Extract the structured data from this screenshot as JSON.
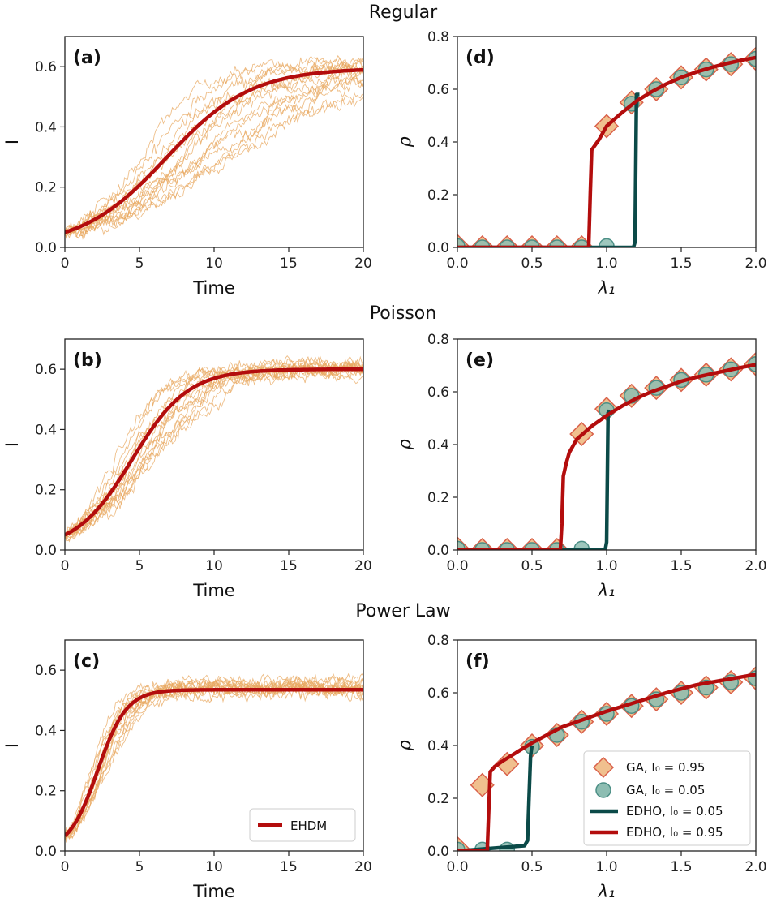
{
  "chart_data": [
    {
      "id": "a",
      "type": "line",
      "row_title": "Regular",
      "panel_label": "(a)",
      "xlabel": "Time",
      "ylabel": "I",
      "xlim": [
        0,
        20
      ],
      "ylim": [
        0,
        0.7
      ],
      "xticks": [
        0,
        5,
        10,
        15,
        20
      ],
      "xtick_labels": [
        "0",
        "5",
        "10",
        "15",
        "20"
      ],
      "yticks": [
        0,
        0.2,
        0.4,
        0.6
      ],
      "ytick_labels": [
        "0.0",
        "0.2",
        "0.4",
        "0.6"
      ],
      "ehdm": {
        "name": "EHDM",
        "I0": 0.05,
        "Imax": 0.595,
        "k": 0.45,
        "t0": 6.8
      },
      "stochastic": {
        "count": 15,
        "t0_min": 5.0,
        "t0_max": 11.5,
        "Imax": 0.6,
        "k": 0.55,
        "noise": 0.02
      }
    },
    {
      "id": "b",
      "type": "line",
      "row_title": "Poisson",
      "panel_label": "(b)",
      "xlabel": "Time",
      "ylabel": "I",
      "xlim": [
        0,
        20
      ],
      "ylim": [
        0,
        0.7
      ],
      "xticks": [
        0,
        5,
        10,
        15,
        20
      ],
      "xtick_labels": [
        "0",
        "5",
        "10",
        "15",
        "20"
      ],
      "yticks": [
        0,
        0.2,
        0.4,
        0.6
      ],
      "ytick_labels": [
        "0.0",
        "0.2",
        "0.4",
        "0.6"
      ],
      "ehdm": {
        "name": "EHDM",
        "I0": 0.05,
        "Imax": 0.6,
        "k": 0.8,
        "t0": 4.5
      },
      "stochastic": {
        "count": 15,
        "t0_min": 3.6,
        "t0_max": 6.2,
        "Imax": 0.605,
        "k": 0.85,
        "noise": 0.02
      }
    },
    {
      "id": "c",
      "type": "line",
      "row_title": "Power Law",
      "panel_label": "(c)",
      "xlabel": "Time",
      "ylabel": "I",
      "xlim": [
        0,
        20
      ],
      "ylim": [
        0,
        0.7
      ],
      "xticks": [
        0,
        5,
        10,
        15,
        20
      ],
      "xtick_labels": [
        "0",
        "5",
        "10",
        "15",
        "20"
      ],
      "yticks": [
        0,
        0.2,
        0.4,
        0.6
      ],
      "ytick_labels": [
        "0.0",
        "0.2",
        "0.4",
        "0.6"
      ],
      "ehdm": {
        "name": "EHDM",
        "I0": 0.05,
        "Imax": 0.535,
        "k": 1.15,
        "t0": 2.2
      },
      "stochastic": {
        "count": 15,
        "t0_min": 1.8,
        "t0_max": 2.9,
        "Imax": 0.54,
        "k": 1.2,
        "noise": 0.02
      },
      "legend": {
        "position": "lower right",
        "entries": [
          "EHDM"
        ]
      }
    },
    {
      "id": "d",
      "type": "line+scatter",
      "panel_label": "(d)",
      "xlabel": "λ₁",
      "ylabel": "ρ",
      "xlim": [
        0,
        2
      ],
      "ylim": [
        0,
        0.8
      ],
      "xticks": [
        0,
        0.5,
        1.0,
        1.5,
        2.0
      ],
      "xtick_labels": [
        "0.0",
        "0.5",
        "1.0",
        "1.5",
        "2.0"
      ],
      "yticks": [
        0,
        0.2,
        0.4,
        0.6,
        0.8
      ],
      "ytick_labels": [
        "0.0",
        "0.2",
        "0.4",
        "0.6",
        "0.8"
      ],
      "ga_high": {
        "x": [
          0,
          0.167,
          0.333,
          0.5,
          0.667,
          0.833,
          1.0,
          1.167,
          1.333,
          1.5,
          1.667,
          1.833,
          2.0
        ],
        "y": [
          0.005,
          0,
          0,
          0,
          0,
          0,
          0.46,
          0.55,
          0.6,
          0.645,
          0.675,
          0.695,
          0.715
        ]
      },
      "ga_low": {
        "x": [
          0,
          0.167,
          0.333,
          0.5,
          0.667,
          0.833,
          1.0,
          1.167,
          1.333,
          1.5,
          1.667,
          1.833,
          2.0
        ],
        "y": [
          0.005,
          0,
          0,
          0,
          0,
          0,
          0.005,
          0.545,
          0.6,
          0.645,
          0.675,
          0.695,
          0.715
        ]
      },
      "edho_low": {
        "x": [
          0,
          1.18,
          1.19,
          1.2,
          1.21,
          1.22
        ],
        "y": [
          0,
          0,
          0.02,
          0.58,
          0.58,
          0.58
        ]
      },
      "edho_high": {
        "x": [
          0,
          0.88,
          0.89,
          0.9,
          0.95,
          1.0,
          1.1,
          1.2,
          1.3,
          1.4,
          1.5,
          1.6,
          1.7,
          1.8,
          1.9,
          2.0
        ],
        "y": [
          0,
          0,
          0.2,
          0.37,
          0.41,
          0.46,
          0.51,
          0.555,
          0.59,
          0.62,
          0.645,
          0.665,
          0.682,
          0.697,
          0.71,
          0.72
        ]
      }
    },
    {
      "id": "e",
      "type": "line+scatter",
      "panel_label": "(e)",
      "xlabel": "λ₁",
      "ylabel": "ρ",
      "xlim": [
        0,
        2
      ],
      "ylim": [
        0,
        0.8
      ],
      "xticks": [
        0,
        0.5,
        1.0,
        1.5,
        2.0
      ],
      "xtick_labels": [
        "0.0",
        "0.5",
        "1.0",
        "1.5",
        "2.0"
      ],
      "yticks": [
        0,
        0.2,
        0.4,
        0.6,
        0.8
      ],
      "ytick_labels": [
        "0.0",
        "0.2",
        "0.4",
        "0.6",
        "0.8"
      ],
      "ga_high": {
        "x": [
          0,
          0.167,
          0.333,
          0.5,
          0.667,
          0.833,
          1.0,
          1.167,
          1.333,
          1.5,
          1.667,
          1.833,
          2.0
        ],
        "y": [
          0.005,
          0,
          0,
          0,
          0,
          0.44,
          0.535,
          0.585,
          0.615,
          0.645,
          0.665,
          0.685,
          0.705
        ]
      },
      "ga_low": {
        "x": [
          0,
          0.167,
          0.333,
          0.5,
          0.667,
          0.833,
          1.0,
          1.167,
          1.333,
          1.5,
          1.667,
          1.833,
          2.0
        ],
        "y": [
          0.005,
          0,
          0,
          0,
          0,
          0.005,
          0.53,
          0.585,
          0.615,
          0.645,
          0.665,
          0.685,
          0.705
        ]
      },
      "edho_low": {
        "x": [
          0,
          0.99,
          1.0,
          1.01,
          1.02
        ],
        "y": [
          0,
          0,
          0.03,
          0.52,
          0.53
        ]
      },
      "edho_high": {
        "x": [
          0,
          0.69,
          0.7,
          0.71,
          0.73,
          0.75,
          0.8,
          0.9,
          1.0,
          1.1,
          1.2,
          1.3,
          1.4,
          1.5,
          1.6,
          1.7,
          1.8,
          1.9,
          2.0
        ],
        "y": [
          0,
          0,
          0.1,
          0.28,
          0.33,
          0.37,
          0.42,
          0.47,
          0.51,
          0.545,
          0.575,
          0.6,
          0.62,
          0.64,
          0.655,
          0.668,
          0.68,
          0.692,
          0.703
        ]
      }
    },
    {
      "id": "f",
      "type": "line+scatter",
      "panel_label": "(f)",
      "xlabel": "λ₁",
      "ylabel": "ρ",
      "xlim": [
        0,
        2
      ],
      "ylim": [
        0,
        0.8
      ],
      "xticks": [
        0,
        0.5,
        1.0,
        1.5,
        2.0
      ],
      "xtick_labels": [
        "0.0",
        "0.5",
        "1.0",
        "1.5",
        "2.0"
      ],
      "yticks": [
        0,
        0.2,
        0.4,
        0.6,
        0.8
      ],
      "ytick_labels": [
        "0.0",
        "0.2",
        "0.4",
        "0.6",
        "0.8"
      ],
      "ga_high": {
        "x": [
          0,
          0.167,
          0.333,
          0.5,
          0.667,
          0.833,
          1.0,
          1.167,
          1.333,
          1.5,
          1.667,
          1.833,
          2.0
        ],
        "y": [
          0.01,
          0.25,
          0.33,
          0.4,
          0.44,
          0.49,
          0.52,
          0.55,
          0.575,
          0.6,
          0.62,
          0.64,
          0.655
        ]
      },
      "ga_low": {
        "x": [
          0,
          0.167,
          0.333,
          0.5,
          0.667,
          0.833,
          1.0,
          1.167,
          1.333,
          1.5,
          1.667,
          1.833,
          2.0
        ],
        "y": [
          0.005,
          0.005,
          0.005,
          0.395,
          0.44,
          0.49,
          0.52,
          0.55,
          0.575,
          0.6,
          0.62,
          0.64,
          0.655
        ]
      },
      "edho_low": {
        "x": [
          0,
          0.45,
          0.47,
          0.48,
          0.49,
          0.5
        ],
        "y": [
          0,
          0.02,
          0.04,
          0.2,
          0.36,
          0.4
        ]
      },
      "edho_high": {
        "x": [
          0,
          0.2,
          0.21,
          0.22,
          0.25,
          0.3,
          0.4,
          0.5,
          0.6,
          0.7,
          0.8,
          0.9,
          1.0,
          1.2,
          1.4,
          1.6,
          1.8,
          2.0
        ],
        "y": [
          0,
          0,
          0.15,
          0.3,
          0.32,
          0.34,
          0.375,
          0.41,
          0.44,
          0.47,
          0.49,
          0.51,
          0.53,
          0.565,
          0.6,
          0.63,
          0.65,
          0.67
        ]
      },
      "legend": {
        "position": "lower right",
        "entries": [
          "GA, I₀ = 0.95",
          "GA, I₀ = 0.05",
          "EDHO, I₀ = 0.05",
          "EDHO, I₀ = 0.95"
        ]
      }
    }
  ],
  "colors": {
    "ehdm": "#b30d0d",
    "edho_high": "#b30d0d",
    "edho_low": "#0b4a48",
    "stochastic": "#e8a860",
    "ga_high_fill": "#f0c08e",
    "ga_high_edge": "#d9604a",
    "ga_low_fill": "#8dbdb2",
    "ga_low_edge": "#4c8f86"
  }
}
